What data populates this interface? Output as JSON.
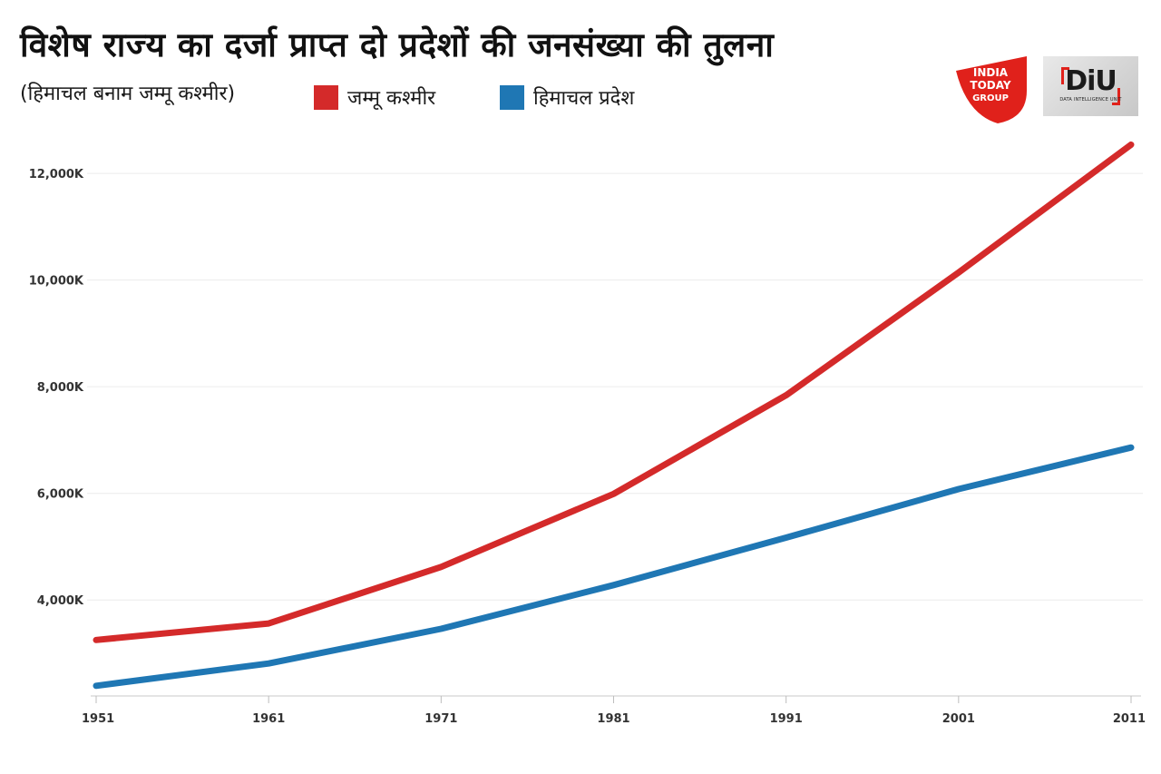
{
  "header": {
    "title": "विशेष राज्य का दर्जा प्राप्त दो प्रदेशों की जनसंख्या की तुलना",
    "subtitle": "(हिमाचल बनाम जम्मू कश्मीर)"
  },
  "logos": {
    "india_today": {
      "line1": "INDIA",
      "line2": "TODAY",
      "line3": "GROUP",
      "color": "#e0211b"
    },
    "diu": {
      "text": "DiU",
      "subtext": "DATA INTELLIGENCE UNIT",
      "accent": "#e0211b"
    }
  },
  "chart_data": {
    "type": "line",
    "title": "विशेष राज्य का दर्जा प्राप्त दो प्रदेशों की जनसंख्या की तुलना",
    "subtitle": "(हिमाचल बनाम जम्मू कश्मीर)",
    "xlabel": "",
    "ylabel": "",
    "x": [
      "1951",
      "1961",
      "1971",
      "1981",
      "1991",
      "2001",
      "2011"
    ],
    "series": [
      {
        "name": "जम्मू कश्मीर",
        "color": "#d42a2a",
        "values": [
          3250,
          3560,
          4620,
          5990,
          7840,
          10140,
          12540
        ]
      },
      {
        "name": "हिमाचल प्रदेश",
        "color": "#1f77b4",
        "values": [
          2390,
          2810,
          3460,
          4280,
          5170,
          6080,
          6860
        ]
      }
    ],
    "ylim": [
      2200,
      12700
    ],
    "yticks": [
      4000,
      6000,
      8000,
      10000,
      12000
    ],
    "ytick_labels": [
      "4,000K",
      "6,000K",
      "8,000K",
      "10,000K",
      "12,000K"
    ],
    "grid": true,
    "legend": "top-left"
  }
}
